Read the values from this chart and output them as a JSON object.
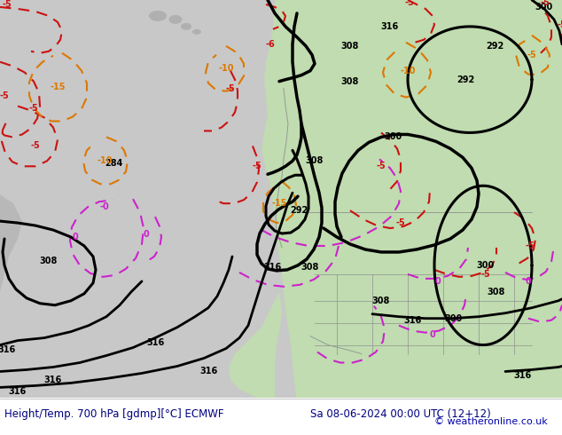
{
  "title_left": "Height/Temp. 700 hPa [gdmp][°C] ECMWF",
  "title_right": "Sa 08-06-2024 00:00 UTC (12+12)",
  "copyright": "© weatheronline.co.uk",
  "ocean_color": "#c8c8c8",
  "land_color_green": "#c0dbb0",
  "land_color_gray": "#b0b0b0",
  "footer_bg": "#ffffff",
  "title_color": "#000080",
  "copyright_color": "#0000aa",
  "figsize": [
    6.34,
    4.9
  ],
  "dpi": 100
}
